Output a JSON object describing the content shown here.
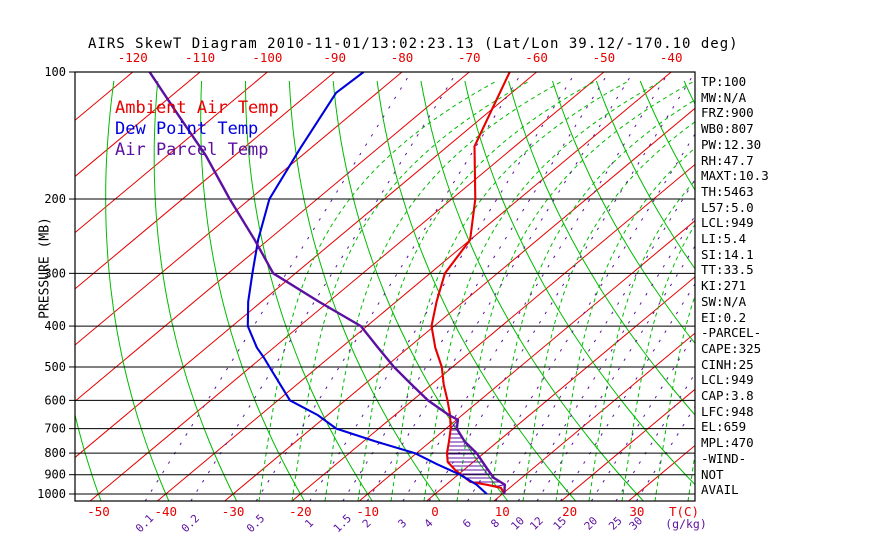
{
  "title": "AIRS SkewT Diagram 2010-11-01/13:02:23.13 (Lat/Lon 39.12/-170.10 deg)",
  "colors": {
    "red": "#e60000",
    "green": "#00bb00",
    "blue": "#0000dd",
    "purple": "#5c10a0",
    "black": "#000000",
    "background": "#ffffff"
  },
  "legend": [
    {
      "label": "Ambient Air Temp",
      "color": "red"
    },
    {
      "label": "Dew Point Temp",
      "color": "blue"
    },
    {
      "label": "Air Parcel Temp",
      "color": "purple"
    }
  ],
  "axes": {
    "pressure": {
      "title": "PRESSURE (MB)",
      "ticks": [
        100,
        200,
        300,
        400,
        500,
        600,
        700,
        800,
        900,
        1000
      ]
    },
    "temp_top_ticks": [
      -120,
      -110,
      -100,
      -90,
      -80,
      -70,
      -60,
      -50,
      -40
    ],
    "temp_bottom_ticks": [
      -50,
      -40,
      -30,
      -20,
      -10,
      0,
      10,
      20,
      30
    ],
    "temp_unit": "T(C)",
    "mixing_ratio_values": [
      0.1,
      0.2,
      0.5,
      1,
      1.5,
      2,
      3,
      4,
      6,
      8,
      10,
      12,
      15,
      20,
      25,
      30
    ],
    "mixing_ratio_unit": "(g/kg)"
  },
  "panel": {
    "lines": [
      "TP:100",
      "MW:N/A",
      "FRZ:900",
      "WB0:807",
      "PW:12.30",
      "RH:47.7",
      "MAXT:10.3",
      "TH:5463",
      "L57:5.0",
      "LCL:949",
      "LI:5.4",
      "SI:14.1",
      "TT:33.5",
      "KI:271",
      "SW:N/A",
      "EI:0.2",
      "-PARCEL-",
      "CAPE:325",
      "CINH:25",
      "LCL:949",
      "CAP:3.8",
      "LFC:948",
      "EL:659",
      "MPL:470",
      "-WIND-",
      "NOT",
      "AVAIL"
    ]
  },
  "chart_data": {
    "type": "line",
    "title": "AIRS SkewT Diagram 2010-11-01/13:02:23.13 (Lat/Lon 39.12/-170.10 deg)",
    "xlabel": "T(C)",
    "ylabel": "PRESSURE (MB)",
    "y_axis": {
      "scale": "log",
      "range_mb": [
        100,
        1040
      ]
    },
    "x_axis": {
      "range_c_at_1000mb": [
        -53,
        39
      ],
      "skew": "isotherms tilt right ~50 deg"
    },
    "grid": {
      "isotherms_c_step": 10,
      "dry_adiabats_step_c": 10,
      "moist_adiabats": "green dashed, right half",
      "mixing_ratio_lines_gkg": [
        0.1,
        0.2,
        0.5,
        1,
        1.5,
        2,
        3,
        4,
        6,
        8,
        10,
        12,
        15,
        20,
        25,
        30
      ]
    },
    "series": [
      {
        "name": "Ambient Air Temp",
        "color": "red",
        "points_p_mb_t_c": [
          [
            100,
            -64
          ],
          [
            150,
            -56
          ],
          [
            200,
            -46.5
          ],
          [
            250,
            -40
          ],
          [
            300,
            -37.8
          ],
          [
            350,
            -34
          ],
          [
            400,
            -30.4
          ],
          [
            450,
            -26
          ],
          [
            500,
            -21.6
          ],
          [
            550,
            -18.2
          ],
          [
            600,
            -14.8
          ],
          [
            650,
            -11.8
          ],
          [
            700,
            -9.3
          ],
          [
            750,
            -7.3
          ],
          [
            800,
            -5.5
          ],
          [
            840,
            -3.8
          ],
          [
            877,
            -1.3
          ],
          [
            936,
            3.1
          ],
          [
            951,
            6.1
          ],
          [
            967,
            8.7
          ],
          [
            1000,
            10.3
          ]
        ]
      },
      {
        "name": "Dew Point Temp",
        "color": "blue",
        "points_p_mb_t_c": [
          [
            100,
            -85.7
          ],
          [
            112,
            -86.1
          ],
          [
            152,
            -81.5
          ],
          [
            200,
            -77.1
          ],
          [
            250,
            -71.5
          ],
          [
            300,
            -66.4
          ],
          [
            350,
            -62
          ],
          [
            400,
            -57.7
          ],
          [
            450,
            -52.5
          ],
          [
            475,
            -49.7
          ],
          [
            500,
            -47.2
          ],
          [
            550,
            -42.5
          ],
          [
            600,
            -38.2
          ],
          [
            650,
            -31.5
          ],
          [
            700,
            -26.3
          ],
          [
            750,
            -18.3
          ],
          [
            800,
            -10.3
          ],
          [
            850,
            -5
          ],
          [
            900,
            0.3
          ],
          [
            950,
            4.5
          ],
          [
            1000,
            7.7
          ]
        ]
      },
      {
        "name": "Air Parcel Temp",
        "color": "purple",
        "points_p_mb_t_c": [
          [
            100,
            -117.5
          ],
          [
            123,
            -107
          ],
          [
            158,
            -94.2
          ],
          [
            200,
            -83
          ],
          [
            250,
            -72
          ],
          [
            300,
            -63.3
          ],
          [
            350,
            -51.5
          ],
          [
            400,
            -40.9
          ],
          [
            450,
            -34.5
          ],
          [
            500,
            -28.7
          ],
          [
            550,
            -23
          ],
          [
            600,
            -17.7
          ],
          [
            650,
            -12
          ],
          [
            667,
            -9.8
          ],
          [
            700,
            -8.4
          ],
          [
            750,
            -5
          ],
          [
            800,
            -1.1
          ],
          [
            860,
            2.6
          ],
          [
            915,
            5.8
          ],
          [
            950,
            8.7
          ],
          [
            1000,
            10.3
          ]
        ]
      }
    ],
    "cape_region": {
      "description": "hatched area between ambient and parcel curves, LFC~948mb to EL~659mb",
      "ambient_edge": [
        [
          667,
          -9.8
        ],
        [
          700,
          -9.3
        ],
        [
          750,
          -7.3
        ],
        [
          800,
          -5.5
        ],
        [
          840,
          -3.8
        ],
        [
          877,
          -1.3
        ],
        [
          936,
          3.1
        ],
        [
          951,
          6.1
        ],
        [
          958,
          7.9
        ]
      ],
      "parcel_edge": [
        [
          950,
          8.7
        ],
        [
          915,
          5.8
        ],
        [
          860,
          2.6
        ],
        [
          800,
          -1.1
        ],
        [
          750,
          -5
        ],
        [
          700,
          -8.4
        ],
        [
          667,
          -9.8
        ]
      ]
    }
  }
}
